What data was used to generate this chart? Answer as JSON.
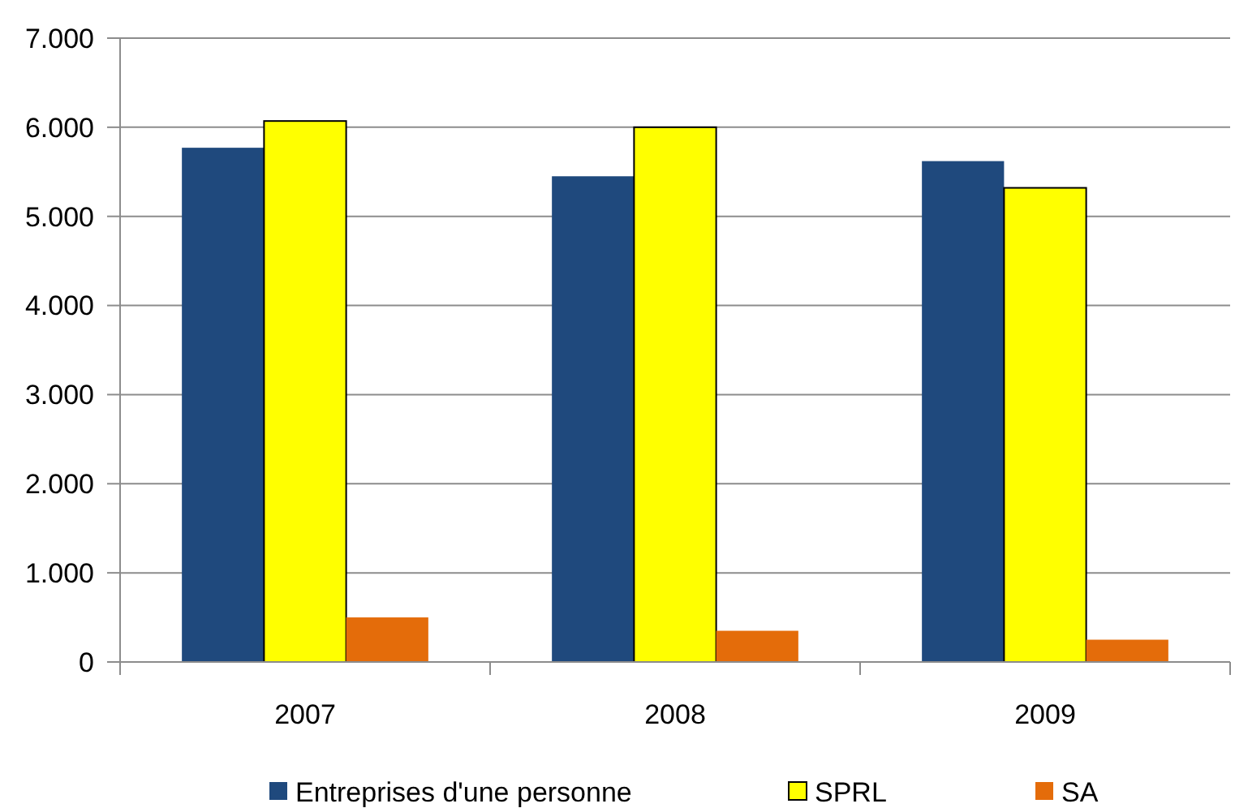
{
  "chart_data": {
    "type": "bar",
    "categories": [
      "2007",
      "2008",
      "2009"
    ],
    "series": [
      {
        "name": "Entreprises d'une personne",
        "color": "#1f497d",
        "values": [
          5770,
          5450,
          5620
        ]
      },
      {
        "name": "SPRL",
        "color": "#ffff00",
        "values": [
          6070,
          6000,
          5320
        ]
      },
      {
        "name": "SA",
        "color": "#e46c0a",
        "values": [
          500,
          350,
          250
        ]
      }
    ],
    "ylim": [
      0,
      7000
    ],
    "yticks": [
      {
        "value": 0,
        "label": "0"
      },
      {
        "value": 1000,
        "label": "1.000"
      },
      {
        "value": 2000,
        "label": "2.000"
      },
      {
        "value": 3000,
        "label": "3.000"
      },
      {
        "value": 4000,
        "label": "4.000"
      },
      {
        "value": 5000,
        "label": "5.000"
      },
      {
        "value": 6000,
        "label": "6.000"
      },
      {
        "value": 7000,
        "label": "7.000"
      }
    ],
    "grid": "y",
    "legend": "bottom"
  }
}
